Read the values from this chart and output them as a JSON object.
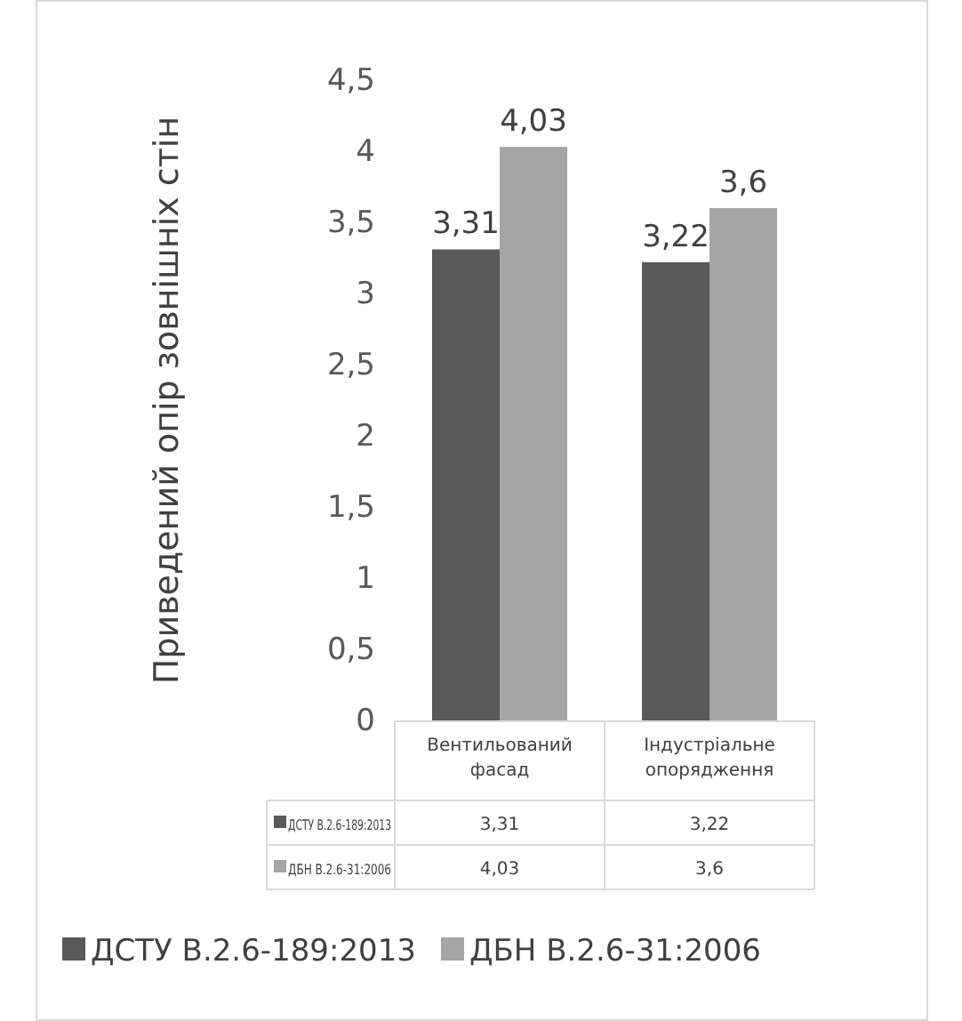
{
  "chart_data": {
    "type": "bar",
    "ylabel": "Приведений опір зовнішніх стін",
    "categories": [
      "Вентильований фасад",
      "Індустріальне опорядження"
    ],
    "series": [
      {
        "name": "ДСТУ В.2.6-189:2013",
        "color": "#595959",
        "values": [
          3.31,
          3.22
        ],
        "value_labels": [
          "3,31",
          "3,22"
        ]
      },
      {
        "name": "ДБН В.2.6-31:2006",
        "color": "#a5a5a5",
        "values": [
          4.03,
          3.6
        ],
        "value_labels": [
          "4,03",
          "3,6"
        ]
      }
    ],
    "ylim": [
      0,
      4.5
    ],
    "yticks": [
      0,
      {
        "value": 0.5,
        "label": "0,5"
      },
      1,
      {
        "value": 1.5,
        "label": "1,5"
      },
      2,
      {
        "value": 2.5,
        "label": "2,5"
      },
      3,
      {
        "value": 3.5,
        "label": "3,5"
      },
      4,
      {
        "value": 4.5,
        "label": "4,5"
      }
    ],
    "grid": false,
    "legend": "bottom"
  }
}
